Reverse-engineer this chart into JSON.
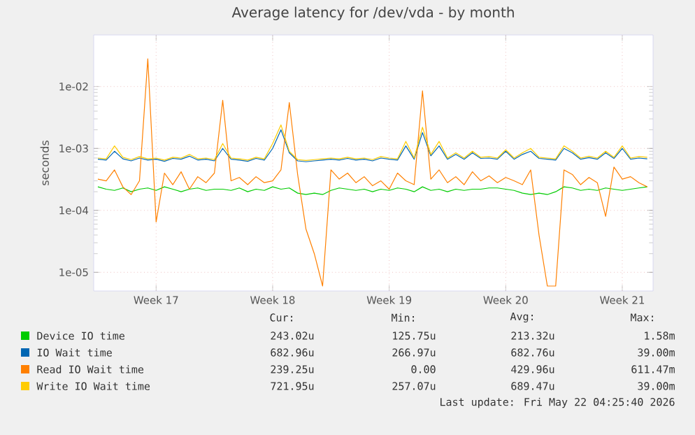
{
  "chart_data": {
    "type": "line",
    "title": "Average latency for /dev/vda - by month",
    "ylabel": "seconds",
    "log": "y",
    "grid": true,
    "legend": "bottom",
    "marker": "none",
    "line_style": "solid",
    "categories": [
      null,
      null,
      null,
      null,
      null,
      null,
      null,
      "Week 17",
      null,
      null,
      null,
      null,
      null,
      null,
      null,
      null,
      null,
      null,
      null,
      null,
      null,
      "Week 18",
      null,
      null,
      null,
      null,
      null,
      null,
      null,
      null,
      null,
      null,
      null,
      null,
      null,
      "Week 19",
      null,
      null,
      null,
      null,
      null,
      null,
      null,
      null,
      null,
      null,
      null,
      null,
      null,
      "Week 20",
      null,
      null,
      null,
      null,
      null,
      null,
      null,
      null,
      null,
      null,
      null,
      null,
      null,
      "Week 21",
      null,
      null,
      null
    ],
    "ylim": [
      5e-06,
      0.068
    ],
    "yticks": [
      {
        "value": 1e-05,
        "label": "1e-05"
      },
      {
        "value": 0.0001,
        "label": "1e-04"
      },
      {
        "value": 0.001,
        "label": "1e-03"
      },
      {
        "value": 0.01,
        "label": "1e-02"
      }
    ],
    "series": [
      {
        "name": "Device IO time",
        "color": "#00cc00",
        "values": [
          0.00024,
          0.00022,
          0.00021,
          0.00023,
          0.0002,
          0.00022,
          0.00023,
          0.00021,
          0.00024,
          0.00022,
          0.0002,
          0.00022,
          0.00023,
          0.00021,
          0.00022,
          0.00022,
          0.00021,
          0.00023,
          0.0002,
          0.00022,
          0.00021,
          0.00024,
          0.00022,
          0.00023,
          0.00019,
          0.00018,
          0.00019,
          0.00018,
          0.00021,
          0.00023,
          0.00022,
          0.00021,
          0.00022,
          0.0002,
          0.00022,
          0.00021,
          0.00023,
          0.00022,
          0.0002,
          0.00024,
          0.00021,
          0.00022,
          0.0002,
          0.00022,
          0.00021,
          0.00022,
          0.00022,
          0.00023,
          0.00023,
          0.00022,
          0.00021,
          0.00019,
          0.00018,
          0.00019,
          0.00018,
          0.0002,
          0.00024,
          0.00023,
          0.00021,
          0.00022,
          0.00021,
          0.00023,
          0.00022,
          0.00021,
          0.00022,
          0.00023,
          0.00024
        ]
      },
      {
        "name": "IO Wait time",
        "color": "#0066b3",
        "values": [
          0.00067,
          0.00065,
          0.0009,
          0.00068,
          0.00063,
          0.0007,
          0.00065,
          0.00067,
          0.00062,
          0.00069,
          0.00067,
          0.00075,
          0.00065,
          0.00067,
          0.00063,
          0.001,
          0.00067,
          0.00065,
          0.00062,
          0.00069,
          0.00065,
          0.001,
          0.002,
          0.00085,
          0.00063,
          0.00061,
          0.00063,
          0.00065,
          0.00067,
          0.00065,
          0.00069,
          0.00065,
          0.00067,
          0.00063,
          0.0007,
          0.00067,
          0.00065,
          0.0011,
          0.00067,
          0.0018,
          0.00076,
          0.0011,
          0.00067,
          0.0008,
          0.00067,
          0.00085,
          0.00069,
          0.0007,
          0.00067,
          0.0009,
          0.00067,
          0.0008,
          0.0009,
          0.00069,
          0.00067,
          0.00065,
          0.001,
          0.00085,
          0.00067,
          0.00071,
          0.00067,
          0.00085,
          0.00069,
          0.001,
          0.00067,
          0.0007,
          0.00068
        ]
      },
      {
        "name": "Read IO Wait time",
        "color": "#ff8000",
        "values": [
          0.00032,
          0.0003,
          0.00045,
          0.00024,
          0.00018,
          0.0003,
          0.028,
          6.5e-05,
          0.0004,
          0.00026,
          0.00042,
          0.00022,
          0.00035,
          0.00028,
          0.0004,
          0.006,
          0.0003,
          0.00034,
          0.00026,
          0.00035,
          0.00028,
          0.0003,
          0.00045,
          0.0055,
          0.00038,
          5e-05,
          2e-05,
          6e-06,
          0.00045,
          0.00032,
          0.0004,
          0.00028,
          0.00035,
          0.00025,
          0.0003,
          0.00022,
          0.0004,
          0.0003,
          0.00026,
          0.0085,
          0.00032,
          0.00045,
          0.00028,
          0.00035,
          0.00026,
          0.00042,
          0.0003,
          0.00036,
          0.00028,
          0.00034,
          0.0003,
          0.00026,
          0.00045,
          4e-05,
          6e-06,
          6e-06,
          0.00045,
          0.00038,
          0.00026,
          0.00034,
          0.00028,
          8e-05,
          0.0005,
          0.00032,
          0.00035,
          0.00028,
          0.00024
        ]
      },
      {
        "name": "Write IO Wait time",
        "color": "#ffcc00",
        "values": [
          0.0007,
          0.00068,
          0.0011,
          0.00072,
          0.00066,
          0.00074,
          0.00068,
          0.0007,
          0.00065,
          0.00072,
          0.0007,
          0.0008,
          0.00068,
          0.0007,
          0.00066,
          0.0012,
          0.0007,
          0.00068,
          0.00065,
          0.00072,
          0.00068,
          0.0012,
          0.0024,
          0.0009,
          0.00066,
          0.00064,
          0.00066,
          0.00068,
          0.0007,
          0.00068,
          0.00072,
          0.00068,
          0.0007,
          0.00066,
          0.00074,
          0.0007,
          0.00068,
          0.0013,
          0.0007,
          0.0022,
          0.0008,
          0.0013,
          0.0007,
          0.00085,
          0.0007,
          0.0009,
          0.00072,
          0.00074,
          0.0007,
          0.00095,
          0.0007,
          0.00085,
          0.001,
          0.00072,
          0.0007,
          0.00068,
          0.0011,
          0.0009,
          0.0007,
          0.00075,
          0.0007,
          0.0009,
          0.00072,
          0.0011,
          0.0007,
          0.00074,
          0.00072
        ]
      }
    ],
    "annotations": [
      "Cur:",
      "Min:",
      "Avg:",
      "Max:",
      "243.02u",
      "125.75u",
      "213.32u",
      "1.58m",
      "682.96u",
      "266.97u",
      "682.76u",
      "39.00m",
      "239.25u",
      "0.00",
      "429.96u",
      "611.47m",
      "721.95u",
      "257.07u",
      "689.47u",
      "39.00m",
      "Last update: Fri May 22 04:25:40 2026"
    ]
  }
}
